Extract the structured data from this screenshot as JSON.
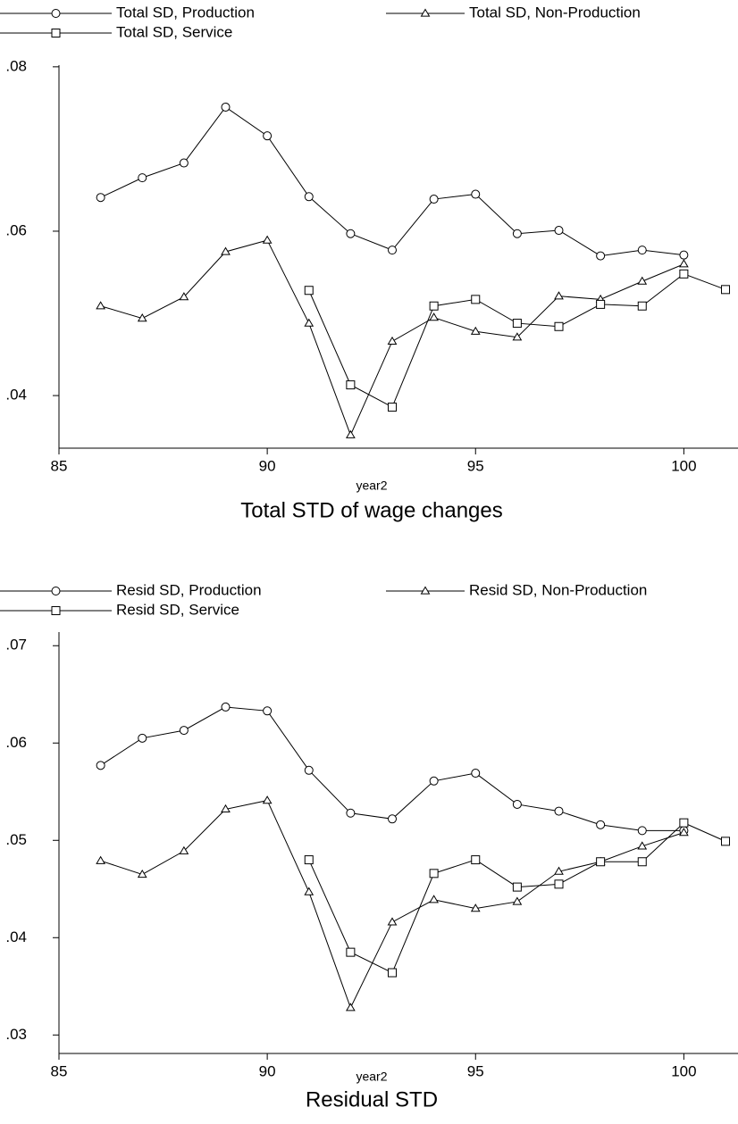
{
  "chart_data": [
    {
      "type": "line",
      "title": "Total STD of wage changes",
      "xlabel": "year2",
      "x": [
        86,
        87,
        88,
        89,
        90,
        91,
        92,
        93,
        94,
        95,
        96,
        97,
        98,
        99,
        100,
        101
      ],
      "series": [
        {
          "name": "Total SD, Production",
          "color": "#000000",
          "marker": "circle",
          "values": [
            0.0641,
            0.0665,
            0.0683,
            0.0751,
            0.0716,
            0.0642,
            0.0597,
            0.0577,
            0.0639,
            0.0645,
            0.0597,
            0.0601,
            0.057,
            0.0577,
            0.0571,
            null
          ]
        },
        {
          "name": "Total SD, Non-Production",
          "color": "#000000",
          "marker": "triangle",
          "values": [
            0.0509,
            0.0494,
            0.052,
            0.0575,
            0.0589,
            0.0488,
            0.0352,
            0.0466,
            0.0495,
            0.0478,
            0.0471,
            0.0521,
            0.0517,
            0.0539,
            0.056,
            null
          ]
        },
        {
          "name": "Total SD, Service",
          "color": "#000000",
          "marker": "square",
          "values": [
            null,
            null,
            null,
            null,
            null,
            0.0528,
            0.0413,
            0.0386,
            0.0509,
            0.0517,
            0.0488,
            0.0484,
            0.0511,
            0.0509,
            0.0548,
            0.0529
          ]
        }
      ],
      "xlim": [
        85,
        101.3
      ],
      "ylim": [
        0.0336,
        0.0802
      ],
      "xticks": [
        85,
        90,
        95,
        100
      ],
      "yticks": [
        {
          "value": 0.04,
          "label": ".04"
        },
        {
          "value": 0.06,
          "label": ".06"
        },
        {
          "value": 0.08,
          "label": ".08"
        }
      ],
      "grid": false,
      "legend": "top"
    },
    {
      "type": "line",
      "title": "Residual STD",
      "xlabel": "year2",
      "x": [
        86,
        87,
        88,
        89,
        90,
        91,
        92,
        93,
        94,
        95,
        96,
        97,
        98,
        99,
        100,
        101
      ],
      "series": [
        {
          "name": "Resid SD, Production",
          "color": "#000000",
          "marker": "circle",
          "values": [
            0.0577,
            0.0605,
            0.0613,
            0.0637,
            0.0633,
            0.0572,
            0.0528,
            0.0522,
            0.0561,
            0.0569,
            0.0537,
            0.053,
            0.0516,
            0.051,
            0.051,
            null
          ]
        },
        {
          "name": "Resid SD, Non-Production",
          "color": "#000000",
          "marker": "triangle",
          "values": [
            0.0479,
            0.0465,
            0.0489,
            0.0532,
            0.0541,
            0.0447,
            0.0328,
            0.0416,
            0.0439,
            0.043,
            0.0437,
            0.0468,
            0.0478,
            0.0494,
            0.0508,
            null
          ]
        },
        {
          "name": "Resid SD, Service",
          "color": "#000000",
          "marker": "square",
          "values": [
            null,
            null,
            null,
            null,
            null,
            0.048,
            0.0385,
            0.0364,
            0.0466,
            0.048,
            0.0452,
            0.0455,
            0.0478,
            0.0478,
            0.0518,
            0.0499
          ]
        }
      ],
      "xlim": [
        85,
        101.3
      ],
      "ylim": [
        0.0281,
        0.0714
      ],
      "xticks": [
        85,
        90,
        95,
        100
      ],
      "yticks": [
        {
          "value": 0.03,
          "label": ".03"
        },
        {
          "value": 0.04,
          "label": ".04"
        },
        {
          "value": 0.05,
          "label": ".05"
        },
        {
          "value": 0.06,
          "label": ".06"
        },
        {
          "value": 0.07,
          "label": ".07"
        }
      ],
      "grid": false,
      "legend": "top"
    }
  ]
}
